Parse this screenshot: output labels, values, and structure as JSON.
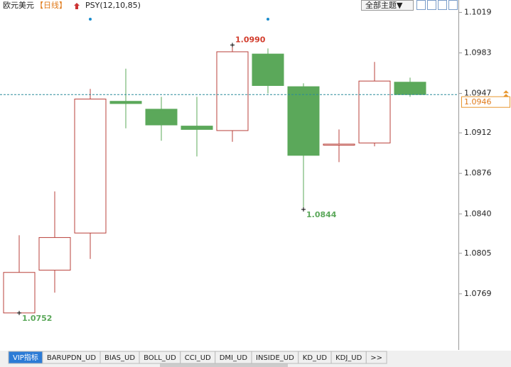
{
  "header": {
    "symbol": "欧元美元",
    "period": "【日线】",
    "indicator": "PSY(12,10,85)",
    "theme": "全部主题▼"
  },
  "tabs": [
    "VIP指标",
    "BARUPDN_UD",
    "BIAS_UD",
    "BOLL_UD",
    "CCI_UD",
    "DMI_UD",
    "INSIDE_UD",
    "KD_UD",
    "KDJ_UD",
    ">>"
  ],
  "chart_data": {
    "type": "candlestick",
    "open": [
      1.0752,
      1.079,
      1.0823,
      1.094,
      1.0933,
      1.0918,
      1.0914,
      1.0982,
      1.0953,
      1.0902,
      1.0903,
      1.0957
    ],
    "high": [
      1.0821,
      1.086,
      1.0951,
      1.0969,
      1.0944,
      1.0944,
      1.099,
      1.0987,
      1.0956,
      1.0915,
      1.0975,
      1.0961
    ],
    "low": [
      1.0752,
      1.077,
      1.08,
      1.0916,
      1.0905,
      1.0891,
      1.0904,
      1.0947,
      1.0844,
      1.0886,
      1.09,
      1.0944
    ],
    "close": [
      1.0788,
      1.0819,
      1.0942,
      1.0938,
      1.0919,
      1.0915,
      1.0984,
      1.0954,
      1.0892,
      1.0902,
      1.0958,
      1.0946
    ],
    "high_labels": [
      null,
      null,
      null,
      null,
      null,
      null,
      "1.0990",
      null,
      null,
      null,
      null,
      null
    ],
    "low_labels": [
      "1.0752",
      null,
      null,
      null,
      null,
      null,
      null,
      null,
      "1.0844",
      null,
      null,
      null
    ],
    "up_color": "#b9413b",
    "down_color": "#5ba85a",
    "current_price": 1.0946,
    "ylim": [
      1.0721,
      1.103
    ],
    "yticks": [
      1.1019,
      1.0983,
      1.0947,
      1.0912,
      1.0876,
      {
        "value": 1.084,
        "label": "1.0840"
      },
      1.0805,
      1.0769
    ]
  }
}
